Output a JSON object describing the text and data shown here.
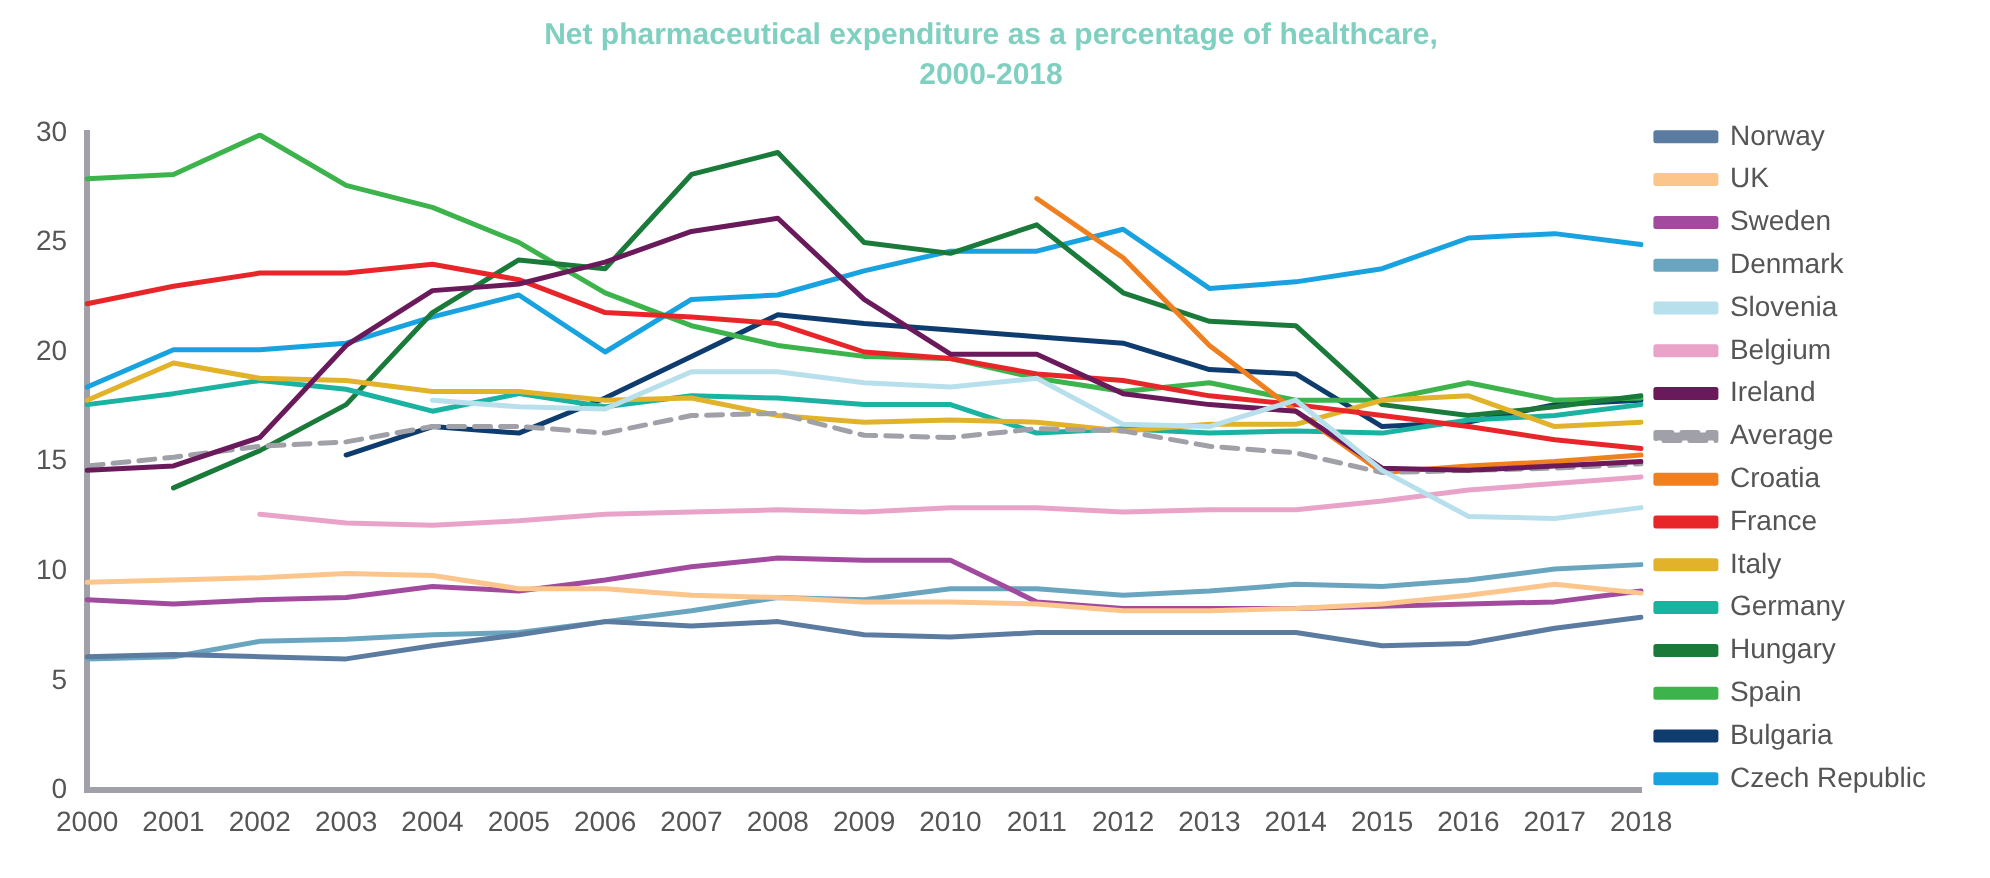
{
  "chart_data": {
    "type": "line",
    "title": "Net pharmaceutical expenditure as a percentage of healthcare, 2000-2018",
    "categories": [
      "2000",
      "2001",
      "2002",
      "2003",
      "2004",
      "2005",
      "2006",
      "2007",
      "2008",
      "2009",
      "2010",
      "2011",
      "2012",
      "2013",
      "2014",
      "2015",
      "2016",
      "2017",
      "2018"
    ],
    "ylim": [
      0,
      30
    ],
    "yticks": [
      0,
      5,
      10,
      15,
      20,
      25,
      30
    ],
    "grid": false,
    "legend": "right",
    "marker": "none",
    "line_style": "solid",
    "series": [
      {
        "name": "Norway",
        "color": "#5b7ba0",
        "values": [
          6.1,
          6.2,
          6.1,
          6.0,
          6.6,
          7.1,
          7.7,
          7.5,
          7.7,
          7.1,
          7.0,
          7.2,
          7.2,
          7.2,
          7.2,
          6.6,
          6.7,
          7.4,
          7.9
        ]
      },
      {
        "name": "UK",
        "color": "#fcc58c",
        "values": [
          9.5,
          9.6,
          9.7,
          9.9,
          9.8,
          9.2,
          9.2,
          8.9,
          8.8,
          8.6,
          8.6,
          8.5,
          8.2,
          8.2,
          8.3,
          8.5,
          8.9,
          9.4,
          9.0
        ]
      },
      {
        "name": "Sweden",
        "color": "#a24a9e",
        "values": [
          8.7,
          8.5,
          8.7,
          8.8,
          9.3,
          9.1,
          9.6,
          10.2,
          10.6,
          10.5,
          10.5,
          8.6,
          8.3,
          8.3,
          8.3,
          8.4,
          8.5,
          8.6,
          9.1
        ]
      },
      {
        "name": "Denmark",
        "color": "#6aa5c0",
        "values": [
          6.0,
          6.1,
          6.8,
          6.9,
          7.1,
          7.2,
          7.7,
          8.2,
          8.8,
          8.7,
          9.2,
          9.2,
          8.9,
          9.1,
          9.4,
          9.3,
          9.6,
          10.1,
          10.3
        ]
      },
      {
        "name": "Slovenia",
        "color": "#b7e0ec",
        "values": [
          null,
          null,
          null,
          null,
          17.8,
          17.5,
          17.4,
          19.1,
          19.1,
          18.6,
          18.4,
          18.8,
          16.7,
          16.6,
          17.8,
          14.6,
          12.5,
          12.4,
          12.9
        ]
      },
      {
        "name": "Belgium",
        "color": "#e9a3c9",
        "values": [
          null,
          null,
          12.6,
          12.2,
          12.1,
          12.3,
          12.6,
          12.7,
          12.8,
          12.7,
          12.9,
          12.9,
          12.7,
          12.8,
          12.8,
          13.2,
          13.7,
          14.0,
          14.3
        ]
      },
      {
        "name": "Ireland",
        "color": "#6a1a5a",
        "values": [
          14.6,
          14.8,
          16.1,
          20.3,
          22.8,
          23.1,
          24.1,
          25.5,
          26.1,
          22.4,
          19.9,
          19.9,
          18.1,
          17.6,
          17.3,
          14.7,
          14.6,
          14.8,
          15.0
        ]
      },
      {
        "name": "Average",
        "color": "#a0a0a8",
        "line_style": "dashed",
        "values": [
          14.8,
          15.2,
          15.7,
          15.9,
          16.6,
          16.6,
          16.3,
          17.1,
          17.2,
          16.2,
          16.1,
          16.5,
          16.4,
          15.7,
          15.4,
          14.5,
          14.6,
          14.7,
          14.9
        ]
      },
      {
        "name": "Croatia",
        "color": "#f07f20",
        "values": [
          null,
          null,
          null,
          null,
          null,
          null,
          null,
          null,
          null,
          null,
          null,
          27.0,
          24.3,
          20.3,
          17.3,
          14.5,
          14.8,
          15.0,
          15.3
        ]
      },
      {
        "name": "France",
        "color": "#e8262a",
        "values": [
          22.2,
          23.0,
          23.6,
          23.6,
          24.0,
          23.3,
          21.8,
          21.6,
          21.3,
          20.0,
          19.7,
          19.0,
          18.7,
          18.0,
          17.6,
          17.1,
          16.6,
          16.0,
          15.6
        ]
      },
      {
        "name": "Italy",
        "color": "#e2b22a",
        "values": [
          17.8,
          19.5,
          18.8,
          18.7,
          18.2,
          18.2,
          17.8,
          17.9,
          17.1,
          16.8,
          16.9,
          16.8,
          16.4,
          16.7,
          16.7,
          17.8,
          18.0,
          16.6,
          16.8
        ]
      },
      {
        "name": "Germany",
        "color": "#1ab2a0",
        "values": [
          17.6,
          18.1,
          18.7,
          18.3,
          17.3,
          18.1,
          17.5,
          18.0,
          17.9,
          17.6,
          17.6,
          16.3,
          16.5,
          16.3,
          16.4,
          16.3,
          16.9,
          17.1,
          17.6
        ]
      },
      {
        "name": "Hungary",
        "color": "#1a7a3a",
        "values": [
          null,
          13.8,
          15.5,
          17.6,
          21.8,
          24.2,
          23.8,
          28.1,
          29.1,
          25.0,
          24.5,
          25.8,
          22.7,
          21.4,
          21.2,
          17.6,
          17.1,
          17.5,
          18.0
        ]
      },
      {
        "name": "Spain",
        "color": "#3cb44b",
        "values": [
          27.9,
          28.1,
          29.9,
          27.6,
          26.6,
          25.0,
          22.7,
          21.2,
          20.3,
          19.8,
          19.7,
          18.8,
          18.2,
          18.6,
          17.8,
          17.8,
          18.6,
          17.8,
          17.9
        ]
      },
      {
        "name": "Bulgaria",
        "color": "#0e3c6e",
        "values": [
          null,
          null,
          null,
          15.3,
          16.6,
          16.3,
          17.9,
          19.8,
          21.7,
          21.3,
          21.0,
          20.7,
          20.4,
          19.2,
          19.0,
          16.6,
          16.8,
          17.6,
          17.8
        ]
      },
      {
        "name": "Czech Republic",
        "color": "#19a2e0",
        "values": [
          18.4,
          20.1,
          20.1,
          20.4,
          21.6,
          22.6,
          20.0,
          22.4,
          22.6,
          23.7,
          24.6,
          24.6,
          25.6,
          22.9,
          23.2,
          23.8,
          25.2,
          25.4,
          24.9
        ]
      }
    ]
  }
}
